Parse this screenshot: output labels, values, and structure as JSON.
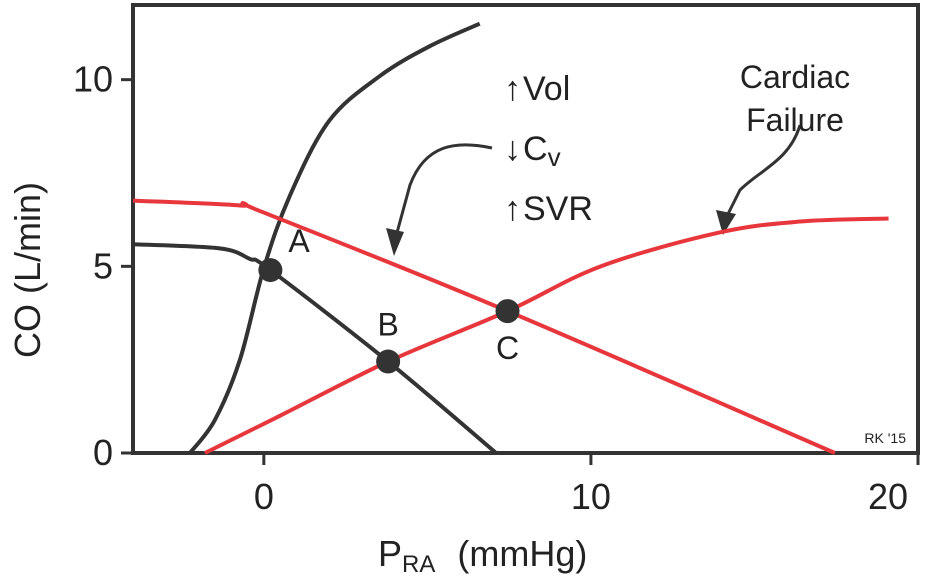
{
  "chart_data": {
    "type": "line",
    "y_label": "CO (L/min)",
    "x_label": {
      "main": "P",
      "sub": "RA",
      "unit": "(mmHg)"
    },
    "xlim": [
      -4,
      20
    ],
    "ylim": [
      0,
      12
    ],
    "xticks": [
      0,
      10,
      20
    ],
    "yticks": [
      0,
      5,
      10
    ],
    "series": [
      {
        "color": "#333333",
        "x": [
          -2.26,
          -1.5,
          -0.73,
          0.0,
          0.8,
          2.0,
          3.55,
          5.08,
          6.6
        ],
        "values": [
          0,
          0.88,
          2.5,
          4.95,
          6.9,
          8.9,
          10.1,
          10.9,
          11.5
        ]
      },
      {
        "color": "#333333",
        "x": [
          -4,
          -1.35,
          -0.43,
          0.2,
          3.8,
          7.1
        ],
        "values": [
          5.59,
          5.48,
          5.2,
          4.9,
          2.45,
          0
        ]
      },
      {
        "color": "#e8373c",
        "x": [
          -4,
          -0.73,
          0.0,
          7.45,
          17.46
        ],
        "values": [
          6.76,
          6.63,
          6.44,
          3.8,
          0
        ]
      },
      {
        "color": "#e8373c",
        "x": [
          -1.8,
          0.5,
          3.8,
          7.45,
          10.3,
          13.9,
          16.4,
          19.1
        ],
        "values": [
          0,
          1.0,
          2.45,
          3.8,
          5.0,
          5.9,
          6.2,
          6.28
        ]
      }
    ],
    "points": [
      {
        "label": "A",
        "x": 0.2,
        "y": 4.9
      },
      {
        "label": "B",
        "x": 3.8,
        "y": 2.45
      },
      {
        "label": "C",
        "x": 7.45,
        "y": 3.8
      }
    ],
    "annotations": [
      {
        "arrow": "↑",
        "text": "Vol"
      },
      {
        "arrow": "↓",
        "text": "C",
        "sub": "v"
      },
      {
        "arrow": "↑",
        "text": "SVR"
      }
    ],
    "failure_label": [
      "Cardiac",
      "Failure"
    ],
    "credit": "RK '15"
  }
}
